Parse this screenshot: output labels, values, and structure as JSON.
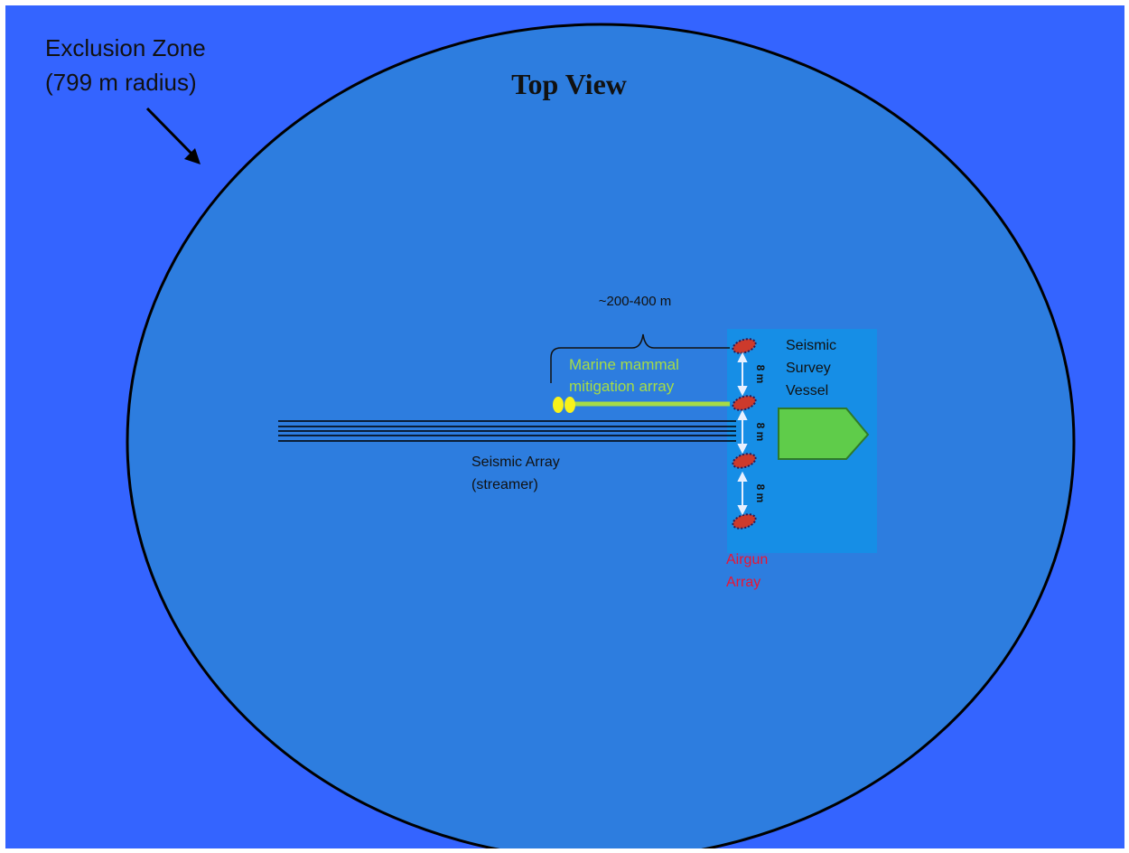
{
  "colors": {
    "outer_background": "#3464ff",
    "zone_fill": "#2d7ddf",
    "vessel_box": "#168ee6",
    "vessel_fill": "#5fcc4a",
    "mitigation_line": "#a6dc46",
    "mitigation_text": "#a6dc46",
    "mitigation_buoys": "#f8f21a",
    "airgun_fill": "#cd3a2c",
    "airgun_text": "#ec1432",
    "spacing_arrows": "#e8f0ff",
    "text_dark": "#111111"
  },
  "title": "Top View",
  "exclusion_zone": {
    "line1": "Exclusion Zone",
    "line2": "(799 m radius)"
  },
  "mitigation_span_label": "~200-400 m",
  "mitigation_array": {
    "line1": "Marine mammal",
    "line2": "mitigation array"
  },
  "vessel": {
    "line1": "Seismic",
    "line2": "Survey",
    "line3": "Vessel"
  },
  "streamer": {
    "line1": "Seismic Array",
    "line2": "(streamer)"
  },
  "airgun": {
    "line1": "Airgun",
    "line2": "Array"
  },
  "spacing_labels": [
    "8 m",
    "8 m",
    "8 m"
  ]
}
